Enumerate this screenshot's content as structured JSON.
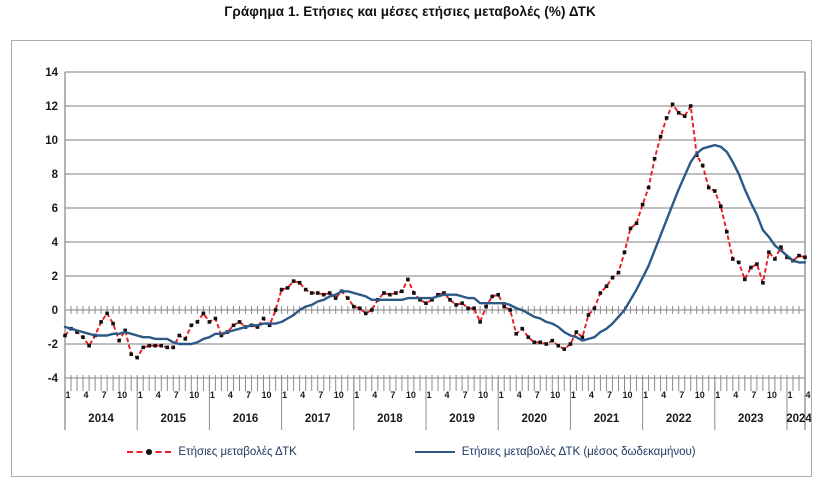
{
  "title": "Γράφημα 1. Ετήσιες και μέσες ετήσιες μεταβολές (%) ΔΤΚ",
  "legend": {
    "annual": "Ετήσιες μεταβολές ΔΤΚ",
    "average": "Ετήσιες μεταβολές ΔΤΚ (μέσος δωδεκαμήνου)"
  },
  "colors": {
    "annual_line": "#ec1b23",
    "average_line": "#2d5986",
    "marker": "#111111",
    "grid": "#999999",
    "axis": "#8c8c8c",
    "axis_text": "#1a1a1a",
    "legend_text": "#1f3864",
    "box_border": "#adadad"
  },
  "chart_data": {
    "type": "line",
    "title": "Γράφημα 1. Ετήσιες και μέσες ετήσιες μεταβολές (%) ΔΤΚ",
    "x_start": "2014-01",
    "x_end": "2024-04",
    "years": [
      2014,
      2015,
      2016,
      2017,
      2018,
      2019,
      2020,
      2021,
      2022,
      2023,
      2024
    ],
    "month_tick_labels": [
      "1",
      "4",
      "7",
      "10"
    ],
    "y_ticks": [
      -4,
      -2,
      0,
      2,
      4,
      6,
      8,
      10,
      12,
      14
    ],
    "ylim": [
      -4,
      14
    ],
    "grid": "horizontal",
    "legend_position": "bottom",
    "series": [
      {
        "name": "Ετήσιες μεταβολές ΔΤΚ",
        "style": "red-dashed-black-square-markers",
        "values": [
          -1.5,
          -1.1,
          -1.3,
          -1.6,
          -2.1,
          -1.5,
          -0.7,
          -0.2,
          -0.8,
          -1.8,
          -1.2,
          -2.6,
          -2.8,
          -2.2,
          -2.1,
          -2.1,
          -2.1,
          -2.2,
          -2.2,
          -1.5,
          -1.7,
          -0.9,
          -0.7,
          -0.2,
          -0.7,
          -0.5,
          -1.5,
          -1.3,
          -0.9,
          -0.7,
          -1.0,
          -0.9,
          -1.0,
          -0.5,
          -0.9,
          0.0,
          1.2,
          1.3,
          1.7,
          1.6,
          1.2,
          1.0,
          1.0,
          0.9,
          1.0,
          0.7,
          1.1,
          0.7,
          0.2,
          0.1,
          -0.2,
          0.0,
          0.6,
          1.0,
          0.9,
          1.0,
          1.1,
          1.8,
          1.0,
          0.6,
          0.4,
          0.6,
          0.9,
          1.0,
          0.6,
          0.3,
          0.4,
          0.1,
          0.1,
          -0.7,
          0.2,
          0.8,
          0.9,
          0.2,
          0.0,
          -1.4,
          -1.1,
          -1.6,
          -1.9,
          -1.9,
          -2.0,
          -1.8,
          -2.1,
          -2.3,
          -2.0,
          -1.3,
          -1.6,
          -0.3,
          0.1,
          1.0,
          1.4,
          1.9,
          2.2,
          3.4,
          4.8,
          5.1,
          6.2,
          7.2,
          8.9,
          10.2,
          11.3,
          12.1,
          11.6,
          11.4,
          12.0,
          9.1,
          8.5,
          7.2,
          7.0,
          6.1,
          4.6,
          3.0,
          2.8,
          1.8,
          2.5,
          2.7,
          1.6,
          3.4,
          3.0,
          3.7,
          3.1,
          2.9,
          3.2,
          3.1
        ]
      },
      {
        "name": "Ετήσιες μεταβολές ΔΤΚ (μέσος δωδεκαμήνου)",
        "style": "blue-solid",
        "values": [
          -1.0,
          -1.1,
          -1.2,
          -1.3,
          -1.4,
          -1.5,
          -1.5,
          -1.5,
          -1.4,
          -1.4,
          -1.3,
          -1.4,
          -1.5,
          -1.6,
          -1.6,
          -1.7,
          -1.7,
          -1.7,
          -1.9,
          -2.0,
          -2.0,
          -2.0,
          -1.9,
          -1.7,
          -1.6,
          -1.4,
          -1.4,
          -1.3,
          -1.2,
          -1.1,
          -1.0,
          -0.9,
          -0.9,
          -0.8,
          -0.8,
          -0.8,
          -0.7,
          -0.5,
          -0.3,
          0.0,
          0.2,
          0.3,
          0.5,
          0.6,
          0.8,
          0.9,
          1.1,
          1.1,
          1.0,
          0.9,
          0.8,
          0.6,
          0.6,
          0.6,
          0.6,
          0.6,
          0.6,
          0.7,
          0.7,
          0.7,
          0.7,
          0.7,
          0.8,
          0.9,
          0.9,
          0.9,
          0.8,
          0.7,
          0.7,
          0.4,
          0.4,
          0.4,
          0.4,
          0.4,
          0.3,
          0.1,
          0.0,
          -0.2,
          -0.4,
          -0.5,
          -0.7,
          -0.8,
          -1.0,
          -1.3,
          -1.5,
          -1.6,
          -1.8,
          -1.7,
          -1.6,
          -1.3,
          -1.1,
          -0.8,
          -0.4,
          0.0,
          0.6,
          1.2,
          1.9,
          2.6,
          3.5,
          4.4,
          5.3,
          6.2,
          7.1,
          7.9,
          8.7,
          9.2,
          9.5,
          9.6,
          9.7,
          9.6,
          9.3,
          8.7,
          8.0,
          7.1,
          6.3,
          5.6,
          4.7,
          4.3,
          3.8,
          3.5,
          3.2,
          2.9,
          2.8,
          2.8
        ]
      }
    ]
  }
}
